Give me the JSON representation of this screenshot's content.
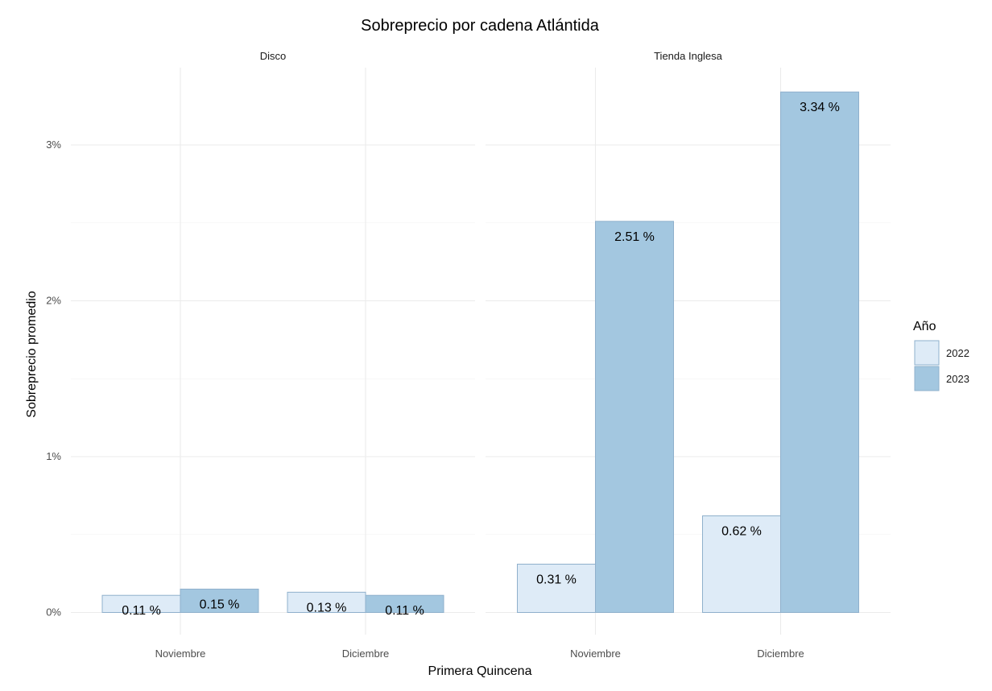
{
  "chart_data": {
    "type": "bar",
    "title": "Sobreprecio por cadena Atlántida",
    "xlabel": "Primera Quincena",
    "ylabel": "Sobreprecio promedio",
    "ylim": [
      0,
      0.035
    ],
    "yticks": [
      {
        "value": 0,
        "label": "0%"
      },
      {
        "value": 0.01,
        "label": "1%"
      },
      {
        "value": 0.02,
        "label": "2%"
      },
      {
        "value": 0.03,
        "label": "3%"
      }
    ],
    "categories": [
      "Noviembre",
      "Diciembre"
    ],
    "legend": {
      "title": "Año",
      "position": "right",
      "entries": [
        {
          "name": "2022",
          "color": "#deebf7"
        },
        {
          "name": "2023",
          "color": "#a3c7e0"
        }
      ]
    },
    "panels": [
      {
        "name": "Disco",
        "series": [
          {
            "name": "2022",
            "values": [
              0.0011,
              0.0013
            ],
            "labels": [
              "0.11 %",
              "0.13 %"
            ]
          },
          {
            "name": "2023",
            "values": [
              0.0015,
              0.0011
            ],
            "labels": [
              "0.15 %",
              "0.11 %"
            ]
          }
        ]
      },
      {
        "name": "Tienda Inglesa",
        "series": [
          {
            "name": "2022",
            "values": [
              0.0031,
              0.0062
            ],
            "labels": [
              "0.31 %",
              "0.62 %"
            ]
          },
          {
            "name": "2023",
            "values": [
              0.0251,
              0.0334
            ],
            "labels": [
              "2.51 %",
              "3.34 %"
            ]
          }
        ]
      }
    ],
    "grid": true,
    "bar_border_color": "#8fb0cc"
  }
}
